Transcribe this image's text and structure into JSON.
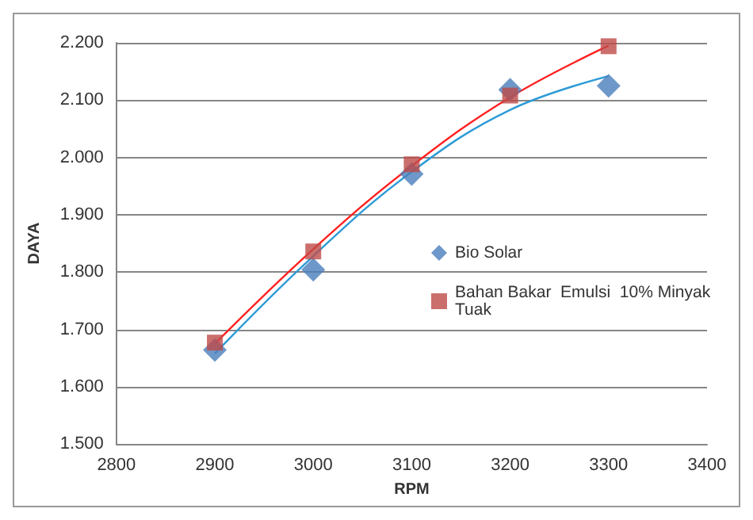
{
  "chart_data": {
    "type": "scatter",
    "xlabel": "RPM",
    "ylabel": "DAYA",
    "x": [
      2900,
      3000,
      3100,
      3200,
      3300
    ],
    "series": [
      {
        "name": "Bio Solar",
        "color": "#4a7ebb",
        "marker": "diamond",
        "values": [
          1.664,
          1.804,
          1.971,
          2.118,
          2.125
        ]
      },
      {
        "name": "Bahan Bakar  Emulsi  10% Minyak Tuak",
        "color": "#be4b48",
        "marker": "square",
        "values": [
          1.677,
          1.836,
          1.988,
          2.108,
          2.194
        ]
      },
      {
        "type": "line",
        "color": "#2e9bd6",
        "marker": "none",
        "line_style": "solid",
        "x": [
          2900,
          3000,
          3100,
          3200,
          3300
        ],
        "values": [
          1.658,
          1.828,
          1.975,
          2.083,
          2.142
        ]
      },
      {
        "type": "line",
        "color": "#ff2020",
        "marker": "none",
        "line_style": "solid",
        "x": [
          2900,
          3000,
          3100,
          3200,
          3300
        ],
        "values": [
          1.675,
          1.84,
          1.985,
          2.105,
          2.195
        ]
      }
    ],
    "xlim": [
      2800,
      3400
    ],
    "xticks": [
      2800,
      2900,
      3000,
      3100,
      3200,
      3300,
      3400
    ],
    "ylim": [
      1.5,
      2.2
    ],
    "yticks": [
      {
        "value": 1.5,
        "label": "1.500"
      },
      {
        "value": 1.6,
        "label": "1.600"
      },
      {
        "value": 1.7,
        "label": "1.700"
      },
      {
        "value": 1.8,
        "label": "1.800"
      },
      {
        "value": 1.9,
        "label": "1.900"
      },
      {
        "value": 2.0,
        "label": "2.000"
      },
      {
        "value": 2.1,
        "label": "2.100"
      },
      {
        "value": 2.2,
        "label": "2.200"
      }
    ],
    "grid": "y",
    "legend": "right"
  }
}
